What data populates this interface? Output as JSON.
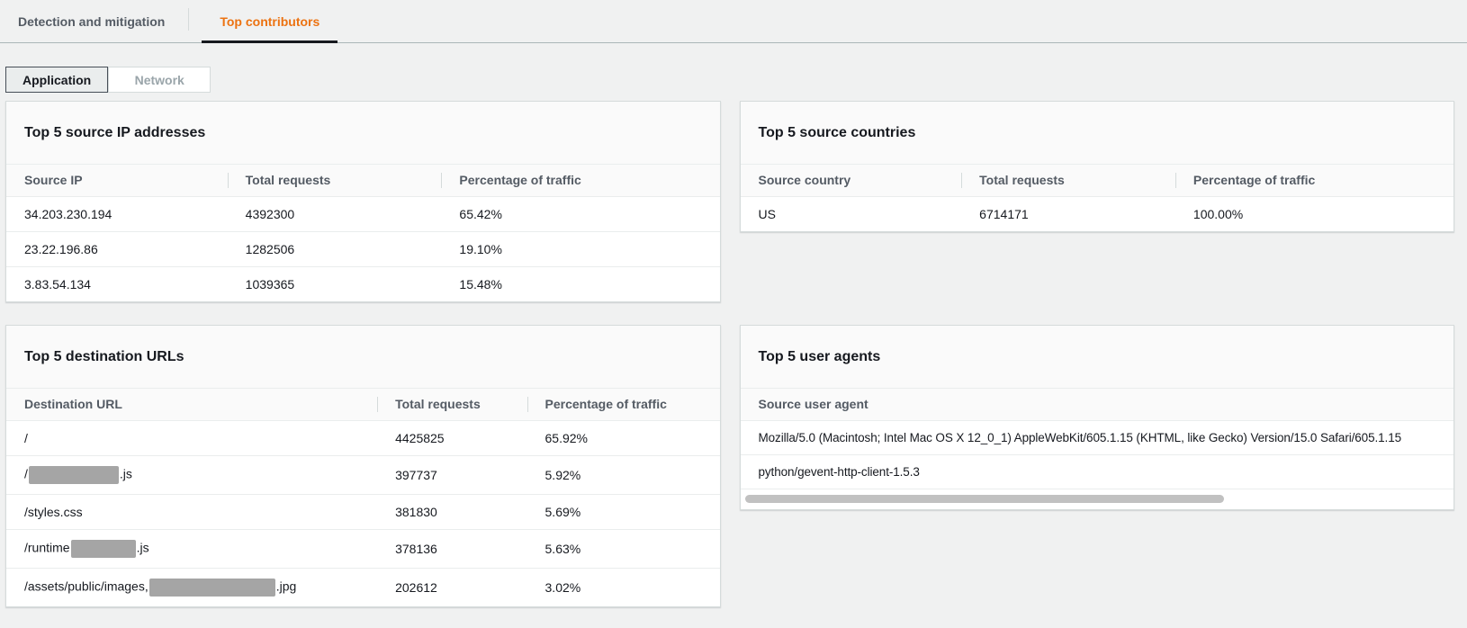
{
  "tabs": {
    "items": [
      {
        "label": "Detection and mitigation",
        "active": false
      },
      {
        "label": "Top contributors",
        "active": true
      }
    ]
  },
  "view_toggle": {
    "options": [
      {
        "label": "Application",
        "selected": true
      },
      {
        "label": "Network",
        "selected": false
      }
    ]
  },
  "colors": {
    "accent_orange": "#ec7211",
    "active_tab_underline": "#16191f",
    "panel_border": "#d5dbdb",
    "page_background": "#f0f1f1",
    "redaction_gray": "#a5a5a5"
  },
  "panels": {
    "source_ips": {
      "title": "Top 5 source IP addresses",
      "table": {
        "columns": [
          "Source IP",
          "Total requests",
          "Percentage of traffic"
        ],
        "col_widths": [
          "31%",
          "30%",
          "39%"
        ],
        "rows": [
          [
            "34.203.230.194",
            "4392300",
            "65.42%"
          ],
          [
            "23.22.196.86",
            "1282506",
            "19.10%"
          ],
          [
            "3.83.54.134",
            "1039365",
            "15.48%"
          ]
        ]
      }
    },
    "source_countries": {
      "title": "Top 5 source countries",
      "table": {
        "columns": [
          "Source country",
          "Total requests",
          "Percentage of traffic"
        ],
        "col_widths": [
          "31%",
          "30%",
          "39%"
        ],
        "rows": [
          [
            "US",
            "6714171",
            "100.00%"
          ]
        ]
      }
    },
    "destination_urls": {
      "title": "Top 5 destination URLs",
      "table": {
        "columns": [
          "Destination URL",
          "Total requests",
          "Percentage of traffic"
        ],
        "col_widths": [
          "52%",
          "21%",
          "27%"
        ],
        "rows": [
          [
            {
              "parts": [
                {
                  "text": "/"
                }
              ]
            },
            "4425825",
            "65.92%"
          ],
          [
            {
              "parts": [
                {
                  "text": "/"
                },
                {
                  "redacted_width": 100
                },
                {
                  "text": ".js"
                }
              ]
            },
            "397737",
            "5.92%"
          ],
          [
            {
              "parts": [
                {
                  "text": "/styles.css"
                }
              ]
            },
            "381830",
            "5.69%"
          ],
          [
            {
              "parts": [
                {
                  "text": "/runtime"
                },
                {
                  "redacted_width": 72
                },
                {
                  "text": ".js"
                }
              ]
            },
            "378136",
            "5.63%"
          ],
          [
            {
              "parts": [
                {
                  "text": "/assets/public/images,"
                },
                {
                  "redacted_width": 140
                },
                {
                  "text": ".jpg"
                }
              ]
            },
            "202612",
            "3.02%"
          ]
        ]
      }
    },
    "user_agents": {
      "title": "Top 5 user agents",
      "table": {
        "columns": [
          "Source user agent"
        ],
        "col_widths": [
          "100%"
        ],
        "rows": [
          [
            "Mozilla/5.0 (Macintosh; Intel Mac OS X 12_0_1) AppleWebKit/605.1.15 (KHTML, like Gecko) Version/15.0 Safari/605.1.15"
          ],
          [
            "python/gevent-http-client-1.5.3"
          ]
        ]
      },
      "scrollbar": {
        "thumb_percent": 68
      }
    }
  }
}
